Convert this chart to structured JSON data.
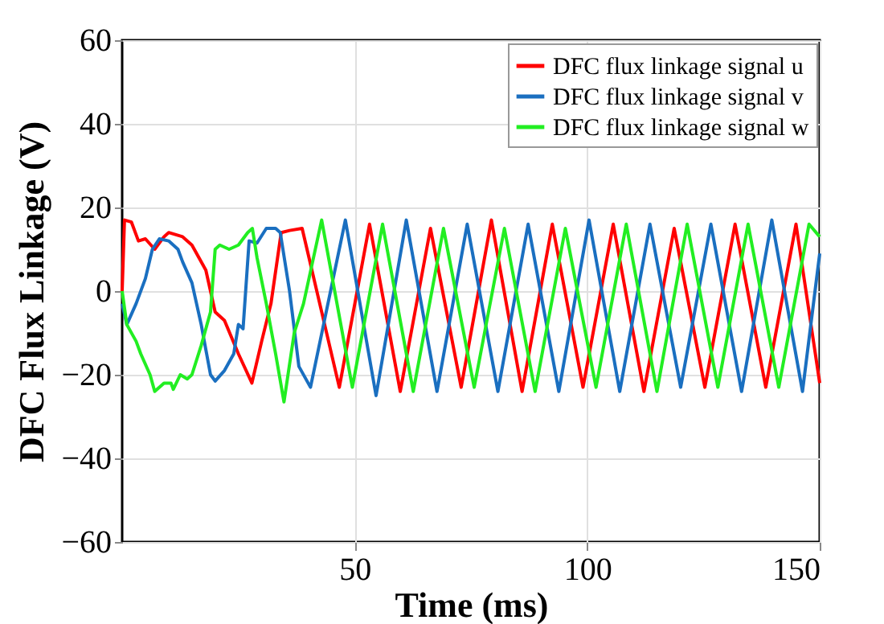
{
  "chart_data": {
    "type": "line",
    "xlabel": "Time (ms)",
    "ylabel": "DFC Flux Linkage (V)",
    "xlim": [
      0,
      150
    ],
    "xticks": [
      50,
      100,
      150
    ],
    "ylim": [
      -60,
      60
    ],
    "yticks": [
      -60,
      -40,
      -20,
      0,
      20,
      40,
      60
    ],
    "grid": true,
    "legend": "top right",
    "line_style": "solid",
    "marker": "none",
    "series": [
      {
        "name": "DFC flux linkage signal u",
        "color": "#ff0000",
        "x": [
          0,
          0.5,
          2,
          3.5,
          5,
          7,
          9,
          10,
          13,
          15,
          18,
          20,
          22,
          25,
          27.9,
          30,
          32,
          34.2,
          36,
          38.7,
          46.7,
          53.2,
          59.8,
          66.3,
          72.9,
          79.4,
          86.0,
          92.5,
          99.1,
          105.6,
          112.2,
          118.7,
          125.3,
          131.8,
          138.4,
          144.9,
          150
        ],
        "values": [
          0,
          17,
          16.5,
          12,
          12.5,
          10,
          13,
          14,
          13,
          11,
          5,
          -5,
          -7,
          -15,
          -22,
          -12,
          -3,
          14,
          14.5,
          15,
          -23,
          16,
          -24,
          15,
          -23,
          17,
          -24,
          16,
          -23,
          16,
          -24,
          15,
          -23,
          16,
          -23,
          16,
          -22
        ]
      },
      {
        "name": "DFC flux linkage signal v",
        "color": "#1a6fc0",
        "x": [
          0,
          1,
          3,
          5,
          6.5,
          8,
          10,
          12,
          13,
          15,
          17,
          19,
          20,
          22,
          24,
          25,
          26,
          27.3,
          29,
          31,
          33,
          34,
          36,
          38,
          40.5,
          48.0,
          54.6,
          61.1,
          67.7,
          74.2,
          80.8,
          87.3,
          93.9,
          100.4,
          107.0,
          113.5,
          120.1,
          126.6,
          133.2,
          139.7,
          146.3,
          150
        ],
        "values": [
          -3,
          -8,
          -3,
          3,
          10,
          12.5,
          12,
          10,
          7,
          2,
          -8,
          -20,
          -21.5,
          -19,
          -15,
          -8,
          -9,
          12,
          11.5,
          15,
          15,
          14,
          0,
          -18,
          -23,
          17,
          -25,
          17,
          -24,
          16,
          -24,
          16,
          -24,
          17,
          -24,
          16,
          -23,
          16,
          -24,
          17,
          -24,
          9
        ]
      },
      {
        "name": "DFC flux linkage signal w",
        "color": "#22ee22",
        "x": [
          0,
          1,
          3,
          4,
          6,
          7,
          9,
          10.5,
          11,
          12.5,
          14,
          15,
          17,
          19,
          20,
          21,
          23,
          25,
          27,
          28,
          29,
          31,
          33,
          34.8,
          37,
          39,
          42.9,
          49.5,
          56.0,
          62.6,
          69.1,
          75.7,
          82.2,
          88.8,
          95.3,
          101.9,
          108.4,
          115.0,
          121.5,
          128.1,
          134.6,
          141.2,
          147.7,
          150
        ],
        "values": [
          0,
          -8,
          -12,
          -15,
          -20,
          -24,
          -22,
          -22,
          -23.5,
          -20,
          -21,
          -20,
          -13,
          -5,
          10,
          11,
          10,
          11,
          14,
          15,
          8,
          -3,
          -15,
          -26.5,
          -10,
          -3,
          17,
          -23,
          16,
          -24,
          15,
          -23,
          15,
          -24,
          15,
          -23,
          16,
          -24,
          16,
          -23,
          16,
          -23,
          16,
          13
        ]
      }
    ]
  }
}
